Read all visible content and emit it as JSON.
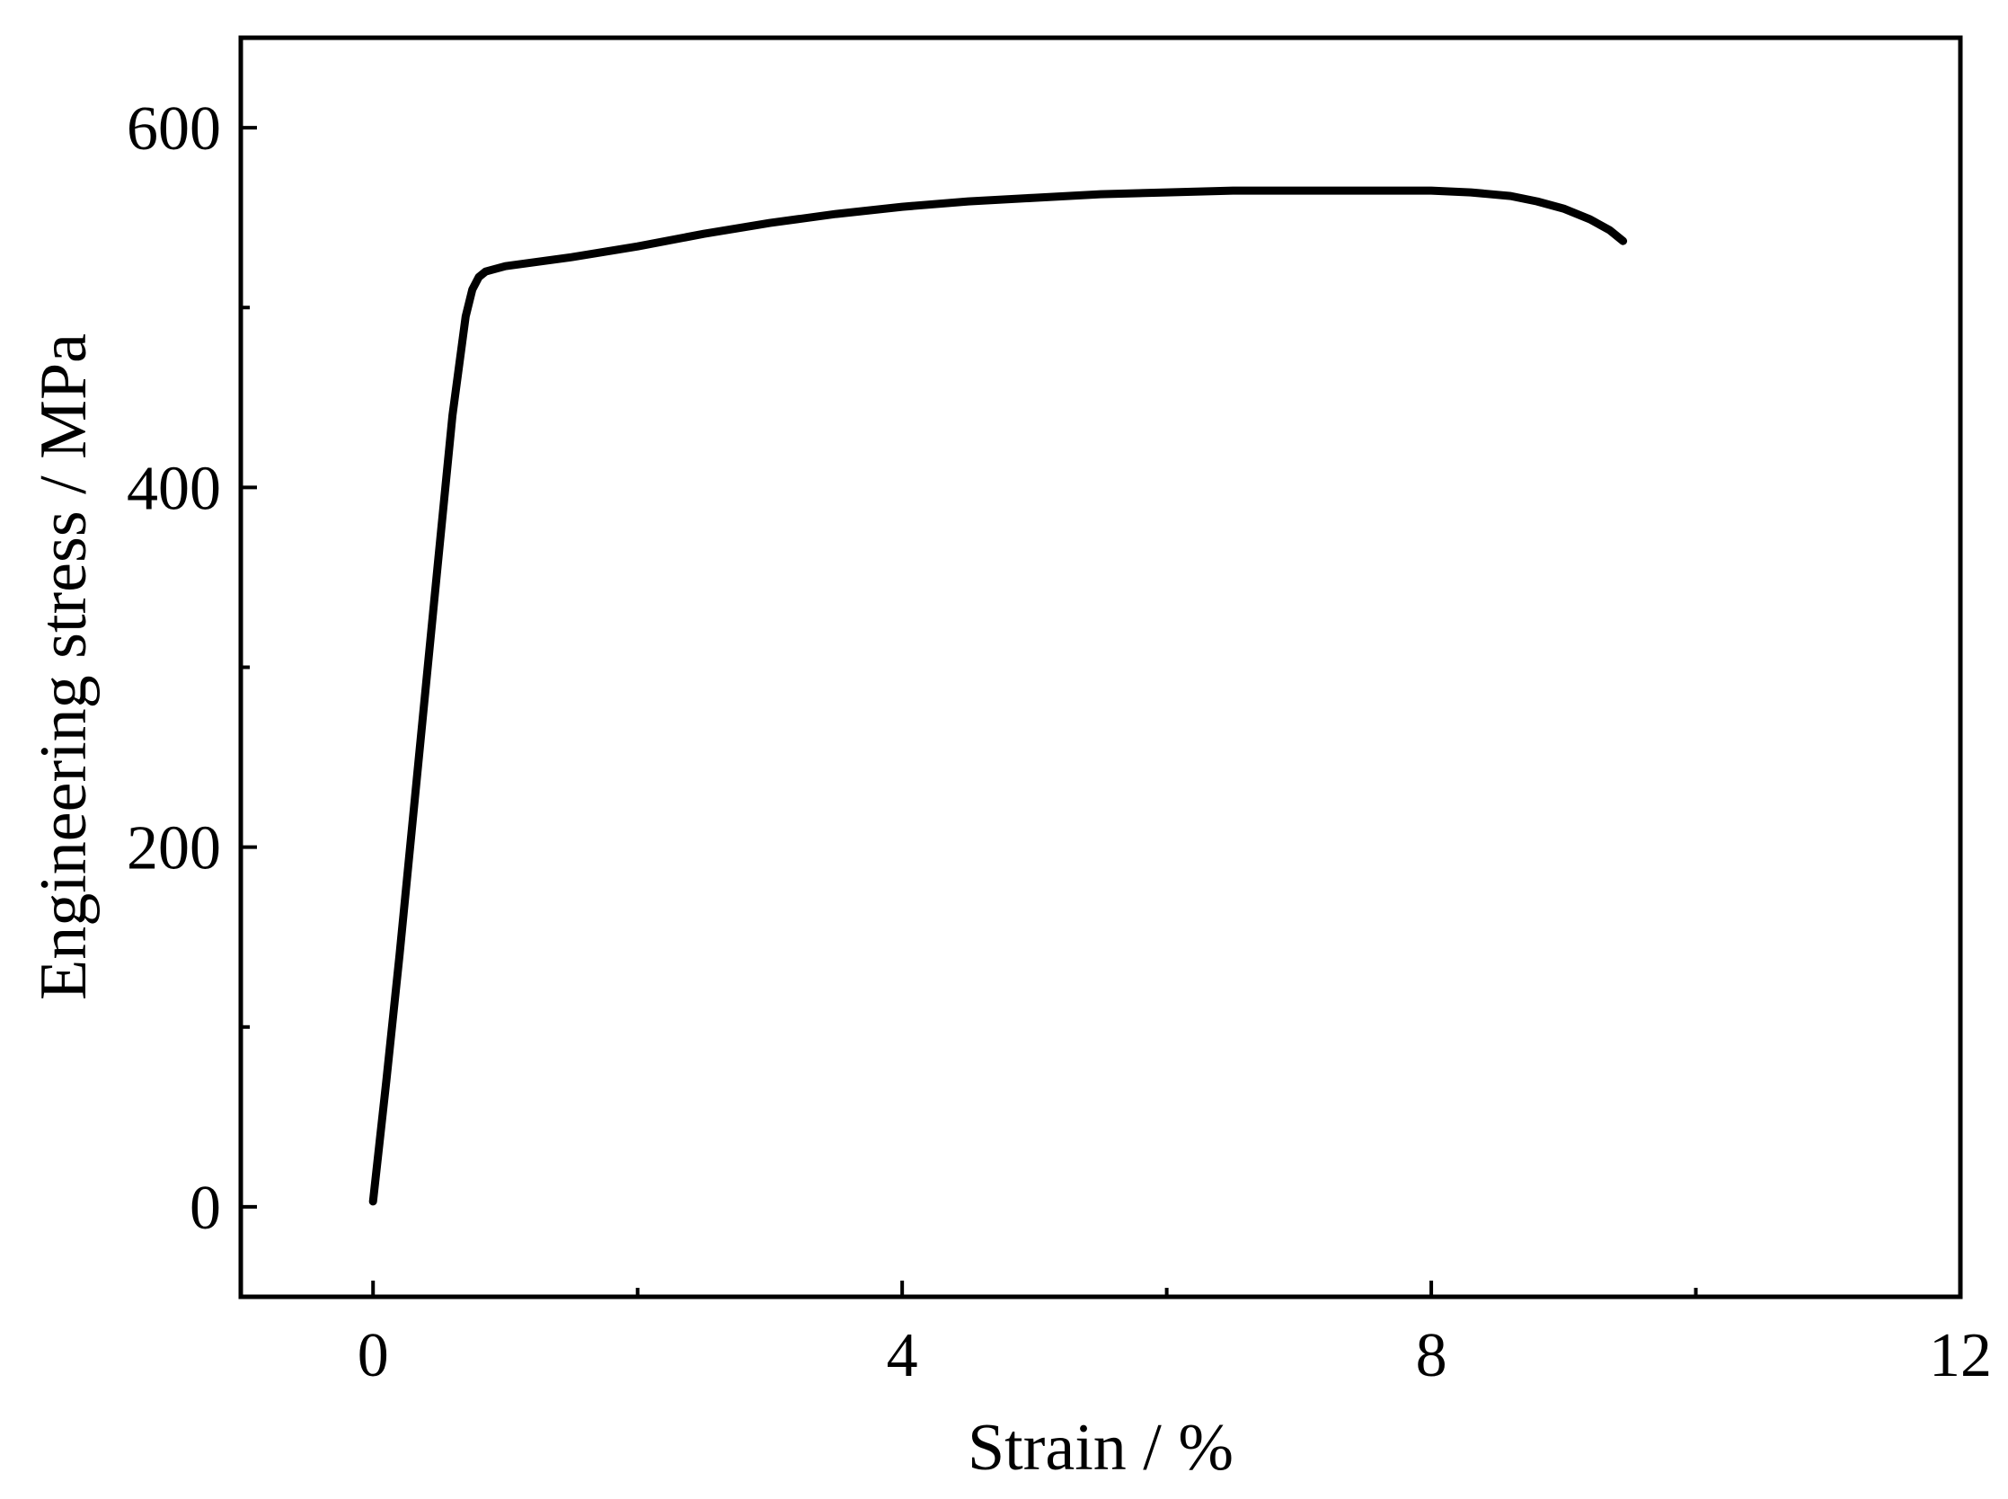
{
  "chart_data": {
    "type": "line",
    "title": "",
    "xlabel": "Strain / %",
    "ylabel": "Engineering stress / MPa",
    "xlim": [
      -1.0,
      12.0
    ],
    "ylim": [
      -50,
      650
    ],
    "x_ticks": [
      0,
      4,
      8,
      12
    ],
    "x_tick_labels": [
      "0",
      "4",
      "8",
      "12"
    ],
    "x_minor_ticks": [
      2,
      6,
      10
    ],
    "y_ticks": [
      0,
      200,
      400,
      600
    ],
    "y_tick_labels": [
      "0",
      "200",
      "400",
      "600"
    ],
    "y_minor_ticks": [
      100,
      300,
      500
    ],
    "grid": false,
    "legend": "none",
    "line_color": "#000000",
    "series": [
      {
        "x": [
          0.0,
          0.1,
          0.2,
          0.3,
          0.4,
          0.5,
          0.6,
          0.7,
          0.75,
          0.8,
          0.85,
          0.9,
          1.0,
          1.2,
          1.5,
          2.0,
          2.5,
          3.0,
          3.5,
          4.0,
          4.5,
          5.0,
          5.5,
          6.0,
          6.5,
          7.0,
          7.5,
          8.0,
          8.3,
          8.6,
          8.8,
          9.0,
          9.2,
          9.35,
          9.45
        ],
        "y": [
          3,
          70,
          140,
          215,
          290,
          365,
          440,
          495,
          510,
          517,
          520,
          521,
          523,
          525,
          528,
          534,
          541,
          547,
          552,
          556,
          559,
          561,
          563,
          564,
          565,
          565,
          565,
          565,
          564,
          562,
          559,
          555,
          549,
          543,
          537
        ]
      }
    ]
  }
}
